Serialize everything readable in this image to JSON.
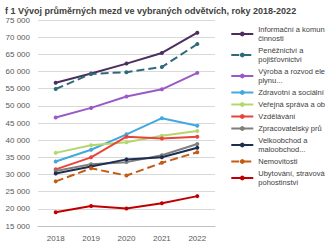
{
  "chart_data": {
    "type": "line",
    "title": "f 1 Vývoj průměrných mezd ve vybraných odvětvích, roky 2018-2022",
    "categories": [
      "2018",
      "2019",
      "2020",
      "2021",
      "2022"
    ],
    "series": [
      {
        "name": "Informační a komun\nčinnosti",
        "color": "#4b2e5e",
        "marker": "circle",
        "line_style": "solid",
        "values": [
          56700,
          59400,
          62300,
          65400,
          71300
        ]
      },
      {
        "name": "Peněžnictví a\npojišťovnictví",
        "color": "#2e6b7a",
        "marker": "circle",
        "line_style": "dashed",
        "values": [
          54900,
          59300,
          59800,
          61300,
          68000
        ]
      },
      {
        "name": "Výroba a rozvod ele\nplynu...",
        "color": "#9b59c6",
        "marker": "circle",
        "line_style": "solid",
        "values": [
          46600,
          49400,
          52700,
          54800,
          59600
        ]
      },
      {
        "name": "Zdravotní a sociální",
        "color": "#41a8e0",
        "marker": "circle",
        "line_style": "solid",
        "values": [
          33800,
          37200,
          41700,
          46400,
          44200
        ]
      },
      {
        "name": "Veřejná správa a ob",
        "color": "#b5d66d",
        "marker": "circle",
        "line_style": "solid",
        "values": [
          36300,
          38500,
          39400,
          41300,
          42700
        ]
      },
      {
        "name": "Vzdělávání",
        "color": "#e8443a",
        "marker": "circle",
        "line_style": "solid",
        "values": [
          31500,
          35000,
          41000,
          40500,
          41000
        ]
      },
      {
        "name": "Zpracovatelský prů",
        "color": "#7f7f7f",
        "marker": "circle",
        "line_style": "solid",
        "values": [
          31000,
          33000,
          33600,
          35600,
          38900
        ]
      },
      {
        "name": "Velkoobchod a\nmaloobchod...",
        "color": "#1f2d4e",
        "marker": "circle",
        "line_style": "solid",
        "values": [
          30300,
          32300,
          34400,
          35000,
          37800
        ]
      },
      {
        "name": "Nemovitosti",
        "color": "#c55a11",
        "marker": "circle",
        "line_style": "dashed",
        "values": [
          28000,
          31800,
          29700,
          33400,
          36500
        ]
      },
      {
        "name": "Ubytování, stravová\npohostinství",
        "color": "#c00000",
        "marker": "circle",
        "line_style": "solid",
        "values": [
          19000,
          20800,
          20100,
          21600,
          23700
        ]
      }
    ],
    "ylim": [
      15000,
      75000
    ],
    "yticks": [
      {
        "value": 15000,
        "label": "15 000"
      },
      {
        "value": 20000,
        "label": "20 000"
      },
      {
        "value": 25000,
        "label": "25 000"
      },
      {
        "value": 30000,
        "label": "30 000"
      },
      {
        "value": 35000,
        "label": "35 000"
      },
      {
        "value": 40000,
        "label": "40 000"
      },
      {
        "value": 45000,
        "label": "45 000"
      },
      {
        "value": 50000,
        "label": "50 000"
      },
      {
        "value": 55000,
        "label": "55 000"
      },
      {
        "value": 60000,
        "label": "60 000"
      },
      {
        "value": 65000,
        "label": "65 000"
      },
      {
        "value": 70000,
        "label": "70 000"
      },
      {
        "value": 75000,
        "label": "75 000"
      }
    ],
    "grid": true,
    "legend": "right"
  }
}
